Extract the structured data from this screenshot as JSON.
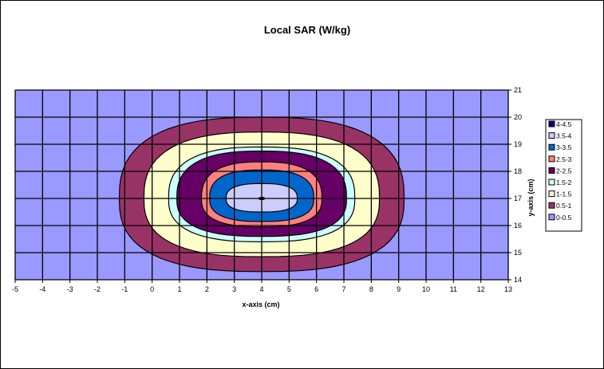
{
  "chart_data": {
    "type": "contour",
    "title": "Local SAR (W/kg)",
    "xlabel": "x-axis (cm)",
    "ylabel": "y-axis (cm)",
    "xlim": [
      -5,
      13
    ],
    "ylim": [
      14,
      21
    ],
    "xticks": [
      "-5",
      "-4",
      "-3",
      "-2",
      "-1",
      "0",
      "1",
      "2",
      "3",
      "4",
      "5",
      "6",
      "7",
      "8",
      "9",
      "10",
      "11",
      "12",
      "13"
    ],
    "yticks": [
      "14",
      "15",
      "16",
      "17",
      "18",
      "19",
      "20",
      "21"
    ],
    "grid": true,
    "legend_position": "right",
    "center": [
      4,
      17
    ],
    "levels": [
      {
        "label": "0-0.5",
        "color": "#9999ff",
        "rx": 9,
        "ry_top": 3.5,
        "ry_bottom": 3.5
      },
      {
        "label": "0.5-1",
        "color": "#993366",
        "rx": 5.2,
        "ry_top": 3.0,
        "ry_bottom": 2.7
      },
      {
        "label": "1-1.5",
        "color": "#ffffcc",
        "rx": 4.3,
        "ry_top": 2.45,
        "ry_bottom": 2.15
      },
      {
        "label": "1.5-2",
        "color": "#ccffff",
        "rx": 3.4,
        "ry_top": 1.9,
        "ry_bottom": 1.6
      },
      {
        "label": "2-2.5",
        "color": "#660066",
        "rx": 3.1,
        "ry_top": 1.75,
        "ry_bottom": 1.4
      },
      {
        "label": "2.5-3",
        "color": "#ff8080",
        "rx": 2.2,
        "ry_top": 1.35,
        "ry_bottom": 1.05
      },
      {
        "label": "3-3.5",
        "color": "#0066cc",
        "rx": 1.9,
        "ry_top": 1.05,
        "ry_bottom": 0.85
      },
      {
        "label": "3.5-4",
        "color": "#ccccff",
        "rx": 1.3,
        "ry_top": 0.55,
        "ry_bottom": 0.5
      },
      {
        "label": "4-4.5",
        "color": "#000080",
        "rx": 0.1,
        "ry_top": 0.04,
        "ry_bottom": 0.04
      }
    ],
    "legend_order": [
      "4-4.5",
      "3.5-4",
      "3-3.5",
      "2.5-3",
      "2-2.5",
      "1.5-2",
      "1-1.5",
      "0.5-1",
      "0-0.5"
    ]
  }
}
